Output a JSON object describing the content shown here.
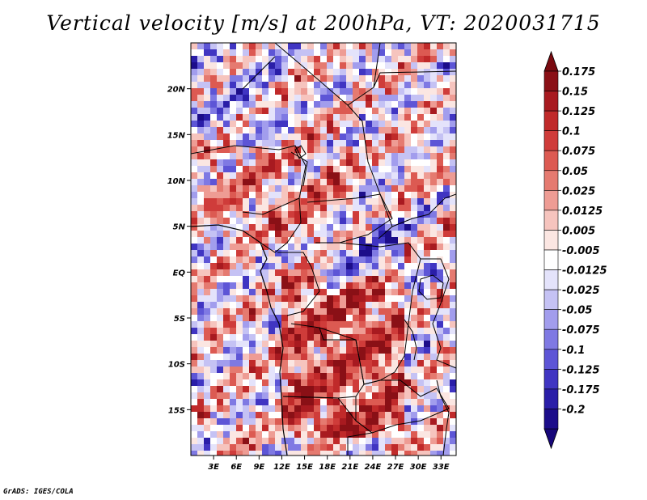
{
  "chart_data": {
    "type": "heatmap",
    "title": "Vertical velocity [m/s] at 200hPa, VT: 2020031715",
    "variable": "Vertical velocity",
    "units": "m/s",
    "level": "200hPa",
    "valid_time": "2020031715",
    "x_axis": {
      "labels": [
        "3E",
        "6E",
        "9E",
        "12E",
        "15E",
        "18E",
        "21E",
        "24E",
        "27E",
        "30E",
        "33E"
      ],
      "values": [
        3,
        6,
        9,
        12,
        15,
        18,
        21,
        24,
        27,
        30,
        33
      ],
      "range": [
        0,
        35
      ]
    },
    "y_axis": {
      "labels": [
        "20N",
        "15N",
        "10N",
        "5N",
        "EQ",
        "5S",
        "10S",
        "15S"
      ],
      "values": [
        20,
        15,
        10,
        5,
        0,
        -5,
        -10,
        -15
      ],
      "range": [
        -20,
        25
      ]
    },
    "colorbar": {
      "levels": [
        "0.175",
        "0.15",
        "0.125",
        "0.1",
        "0.075",
        "0.05",
        "0.025",
        "0.0125",
        "0.005",
        "-0.005",
        "-0.0125",
        "-0.025",
        "-0.05",
        "-0.075",
        "-0.1",
        "-0.125",
        "-0.175",
        "-0.2"
      ],
      "colors": [
        "#8a1016",
        "#a81a20",
        "#c02a2a",
        "#cf3c3a",
        "#dc5a52",
        "#e57a70",
        "#ee9c94",
        "#f6c4be",
        "#fbe6e2",
        "#ffffff",
        "#e4e3fb",
        "#c5c2f4",
        "#a29ded",
        "#7f79e3",
        "#5d55d6",
        "#4035c2",
        "#2a1ea8",
        "#1c0d8a"
      ],
      "top_arrow_color": "#7a0a10",
      "bottom_arrow_color": "#17077a"
    }
  },
  "footer": "GrADS: IGES/COLA"
}
